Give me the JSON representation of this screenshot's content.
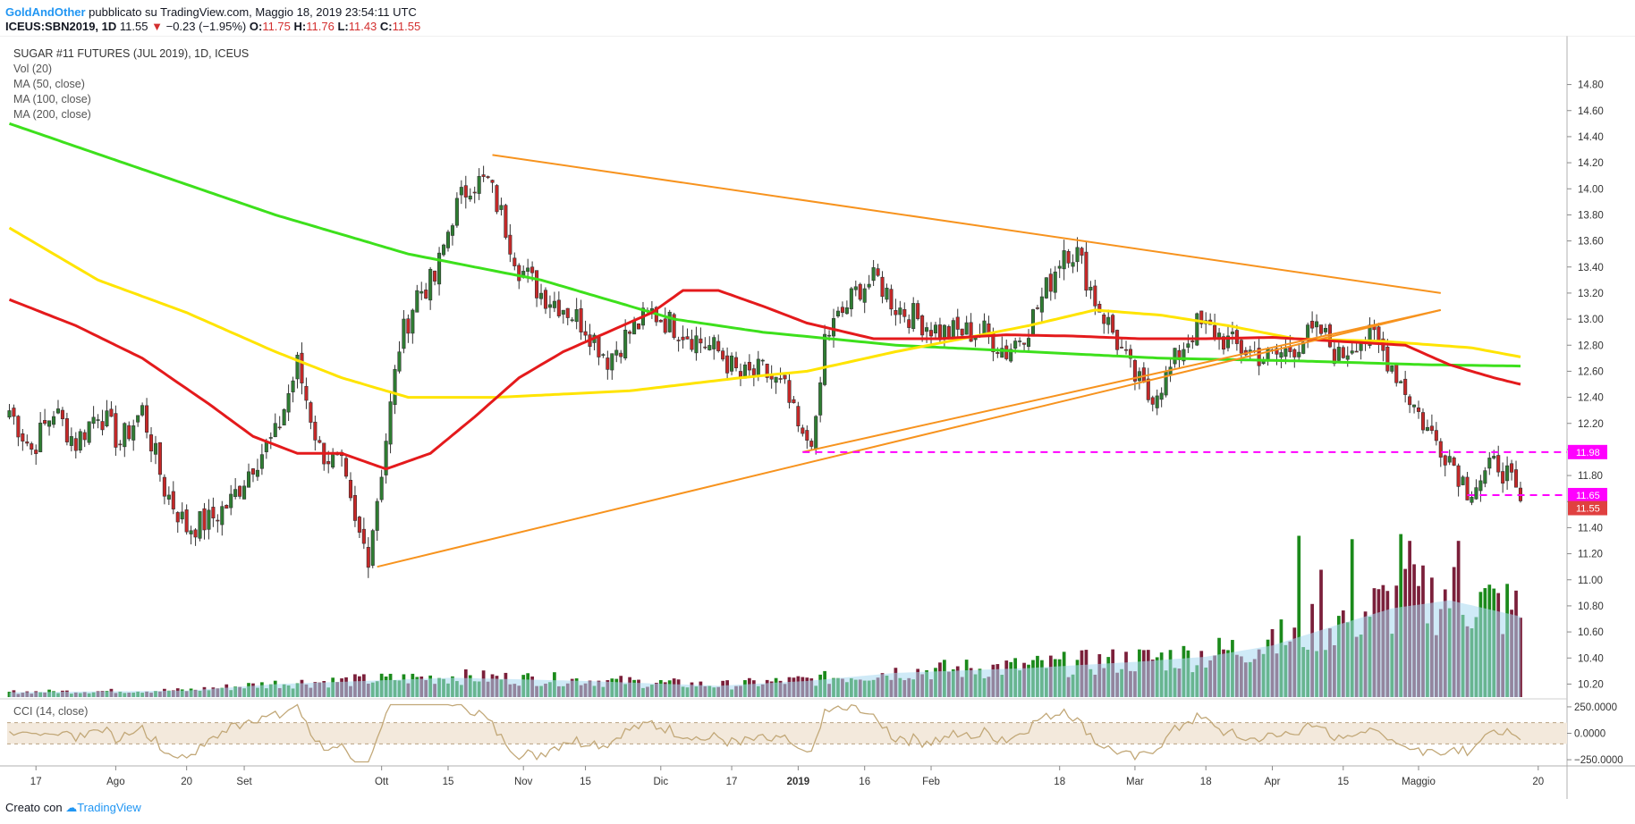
{
  "header": {
    "author": "GoldAndOther",
    "published": "pubblicato su TradingView.com, Maggio 18, 2019 23:54:11 UTC",
    "symbol": "ICEUS:SBN2019, 1D",
    "last": "11.55",
    "change_arrow": "▼",
    "change": "−0.23 (−1.95%)",
    "o_label": "O:",
    "o": "11.75",
    "h_label": "H:",
    "h": "11.76",
    "l_label": "L:",
    "l": "11.43",
    "c_label": "C:",
    "c": "11.55"
  },
  "legend": {
    "title": "SUGAR #11 FUTURES (JUL 2019), 1D, ICEUS",
    "vol": "Vol (20)",
    "ma50": "MA (50, close)",
    "ma100": "MA (100, close)",
    "ma200": "MA (200, close)"
  },
  "cci_label": "CCI (14, close)",
  "footer": {
    "created": "Creato con",
    "brand": "TradingView"
  },
  "colors": {
    "up": "#2e7d32",
    "down": "#c62828",
    "ma50": "#e41a1c",
    "ma100": "#ffe400",
    "ma200": "#3de01c",
    "trendline": "#f7931e",
    "hline": "#ff00ff",
    "vol_up": "#1b8a1b",
    "vol_down": "#7b1f3a",
    "vol_ma": "#a8d8f0",
    "cci": "#c2a878",
    "cci_band": "#f3e9dc"
  },
  "chart_data": {
    "type": "candlestick",
    "price_axis": {
      "ylim": [
        10.1,
        14.9
      ],
      "ticks": [
        "14.80",
        "14.60",
        "14.40",
        "14.20",
        "14.00",
        "13.80",
        "13.60",
        "13.40",
        "13.20",
        "13.00",
        "12.80",
        "12.60",
        "12.40",
        "12.20",
        "12.00",
        "11.80",
        "11.60",
        "11.40",
        "11.20",
        "11.00",
        "10.80",
        "10.60",
        "10.40",
        "10.20"
      ]
    },
    "time_axis": {
      "labels": [
        "17",
        "Ago",
        "20",
        "Set",
        "Ott",
        "15",
        "Nov",
        "15",
        "Dic",
        "17",
        "2019",
        "16",
        "Feb",
        "18",
        "Mar",
        "18",
        "Apr",
        "15",
        "Maggio",
        "20"
      ],
      "label_day_index": [
        6,
        24,
        40,
        53,
        84,
        99,
        116,
        130,
        147,
        163,
        178,
        193,
        208,
        237,
        254,
        270,
        285,
        301,
        318,
        345
      ]
    },
    "price_badges": [
      {
        "value": 11.98,
        "label": "11.98",
        "color": "#ff00ff"
      },
      {
        "value": 11.65,
        "label": "11.65",
        "color": "#ff00ff"
      },
      {
        "value": 11.55,
        "label": "11.55",
        "color": "#e04040"
      }
    ],
    "horizontal_levels": [
      {
        "value": 11.98,
        "from_day": 179,
        "to_day": 338
      },
      {
        "value": 11.65,
        "from_day": 329,
        "to_day": 338
      }
    ],
    "trendlines": [
      {
        "from": [
          109,
          14.26
        ],
        "to": [
          323,
          13.2
        ]
      },
      {
        "from": [
          83,
          11.1
        ],
        "to": [
          323,
          13.07
        ]
      },
      {
        "from": [
          179,
          11.98
        ],
        "to": [
          323,
          13.07
        ]
      }
    ],
    "price_keypoints": [
      [
        0,
        12.3
      ],
      [
        5,
        12.0
      ],
      [
        10,
        12.3
      ],
      [
        15,
        12.05
      ],
      [
        20,
        12.3
      ],
      [
        25,
        12.05
      ],
      [
        30,
        12.3
      ],
      [
        35,
        11.7
      ],
      [
        40,
        11.4
      ],
      [
        45,
        11.45
      ],
      [
        50,
        11.6
      ],
      [
        55,
        11.9
      ],
      [
        60,
        12.1
      ],
      [
        65,
        12.65
      ],
      [
        70,
        12.0
      ],
      [
        75,
        11.85
      ],
      [
        78,
        11.4
      ],
      [
        81,
        11.2
      ],
      [
        84,
        11.85
      ],
      [
        88,
        12.8
      ],
      [
        92,
        13.2
      ],
      [
        96,
        13.3
      ],
      [
        100,
        13.8
      ],
      [
        104,
        14.05
      ],
      [
        108,
        14.05
      ],
      [
        111,
        13.8
      ],
      [
        115,
        13.4
      ],
      [
        120,
        13.2
      ],
      [
        125,
        13.1
      ],
      [
        130,
        12.95
      ],
      [
        135,
        12.7
      ],
      [
        140,
        12.9
      ],
      [
        145,
        13.05
      ],
      [
        150,
        12.95
      ],
      [
        155,
        12.85
      ],
      [
        160,
        12.75
      ],
      [
        165,
        12.55
      ],
      [
        170,
        12.6
      ],
      [
        175,
        12.45
      ],
      [
        179,
        12.05
      ],
      [
        182,
        12.15
      ],
      [
        184,
        12.85
      ],
      [
        188,
        13.05
      ],
      [
        192,
        13.25
      ],
      [
        196,
        13.3
      ],
      [
        200,
        13.1
      ],
      [
        205,
        13.0
      ],
      [
        210,
        12.9
      ],
      [
        215,
        12.9
      ],
      [
        220,
        12.9
      ],
      [
        225,
        12.75
      ],
      [
        230,
        12.95
      ],
      [
        235,
        13.3
      ],
      [
        238,
        13.55
      ],
      [
        241,
        13.5
      ],
      [
        245,
        13.15
      ],
      [
        249,
        12.9
      ],
      [
        253,
        12.6
      ],
      [
        257,
        12.4
      ],
      [
        261,
        12.55
      ],
      [
        265,
        12.8
      ],
      [
        268,
        12.95
      ],
      [
        272,
        12.9
      ],
      [
        276,
        12.8
      ],
      [
        280,
        12.75
      ],
      [
        284,
        12.7
      ],
      [
        288,
        12.75
      ],
      [
        292,
        12.85
      ],
      [
        296,
        12.9
      ],
      [
        300,
        12.7
      ],
      [
        304,
        12.85
      ],
      [
        308,
        12.85
      ],
      [
        312,
        12.65
      ],
      [
        316,
        12.4
      ],
      [
        320,
        12.15
      ],
      [
        325,
        11.95
      ],
      [
        329,
        11.7
      ],
      [
        333,
        11.8
      ],
      [
        336,
        11.9
      ],
      [
        338,
        11.8
      ],
      [
        341,
        11.55
      ]
    ],
    "volume_keypoints": [
      [
        0,
        0.03
      ],
      [
        40,
        0.04
      ],
      [
        60,
        0.08
      ],
      [
        100,
        0.12
      ],
      [
        130,
        0.1
      ],
      [
        160,
        0.07
      ],
      [
        180,
        0.1
      ],
      [
        200,
        0.15
      ],
      [
        230,
        0.18
      ],
      [
        255,
        0.22
      ],
      [
        270,
        0.25
      ],
      [
        285,
        0.32
      ],
      [
        300,
        0.45
      ],
      [
        312,
        0.55
      ],
      [
        325,
        0.6
      ],
      [
        341,
        0.5
      ]
    ],
    "volume_spikes": [
      [
        291,
        0.95
      ],
      [
        303,
        0.93
      ],
      [
        314,
        0.96
      ],
      [
        316,
        0.92
      ],
      [
        327,
        0.92
      ],
      [
        285,
        0.4
      ],
      [
        296,
        0.75
      ]
    ],
    "ma_series": [
      {
        "key": "ma200",
        "points": [
          [
            0,
            14.5
          ],
          [
            30,
            14.15
          ],
          [
            60,
            13.8
          ],
          [
            90,
            13.5
          ],
          [
            120,
            13.3
          ],
          [
            150,
            13.0
          ],
          [
            170,
            12.9
          ],
          [
            200,
            12.8
          ],
          [
            230,
            12.75
          ],
          [
            260,
            12.7
          ],
          [
            290,
            12.68
          ],
          [
            320,
            12.65
          ],
          [
            341,
            12.64
          ]
        ]
      },
      {
        "key": "ma100",
        "points": [
          [
            0,
            13.7
          ],
          [
            20,
            13.3
          ],
          [
            40,
            13.05
          ],
          [
            60,
            12.75
          ],
          [
            75,
            12.55
          ],
          [
            90,
            12.4
          ],
          [
            110,
            12.4
          ],
          [
            140,
            12.45
          ],
          [
            165,
            12.55
          ],
          [
            180,
            12.6
          ],
          [
            200,
            12.75
          ],
          [
            215,
            12.85
          ],
          [
            230,
            12.95
          ],
          [
            245,
            13.07
          ],
          [
            260,
            13.03
          ],
          [
            275,
            12.95
          ],
          [
            290,
            12.85
          ],
          [
            310,
            12.83
          ],
          [
            330,
            12.78
          ],
          [
            341,
            12.71
          ]
        ]
      },
      {
        "key": "ma50",
        "points": [
          [
            0,
            13.15
          ],
          [
            15,
            12.95
          ],
          [
            30,
            12.7
          ],
          [
            45,
            12.35
          ],
          [
            55,
            12.1
          ],
          [
            65,
            11.97
          ],
          [
            75,
            11.97
          ],
          [
            85,
            11.85
          ],
          [
            95,
            11.97
          ],
          [
            105,
            12.25
          ],
          [
            115,
            12.55
          ],
          [
            125,
            12.75
          ],
          [
            135,
            12.9
          ],
          [
            145,
            13.05
          ],
          [
            152,
            13.22
          ],
          [
            160,
            13.22
          ],
          [
            170,
            13.1
          ],
          [
            180,
            12.97
          ],
          [
            195,
            12.85
          ],
          [
            210,
            12.85
          ],
          [
            225,
            12.88
          ],
          [
            240,
            12.87
          ],
          [
            255,
            12.85
          ],
          [
            270,
            12.85
          ],
          [
            285,
            12.86
          ],
          [
            300,
            12.83
          ],
          [
            315,
            12.8
          ],
          [
            325,
            12.65
          ],
          [
            335,
            12.55
          ],
          [
            341,
            12.5
          ]
        ]
      }
    ],
    "cci_axis": {
      "ticks": [
        "250.0000",
        "0.0000",
        "−250.0000"
      ],
      "ylim": [
        -300,
        300
      ],
      "band": [
        -100,
        100
      ]
    }
  }
}
